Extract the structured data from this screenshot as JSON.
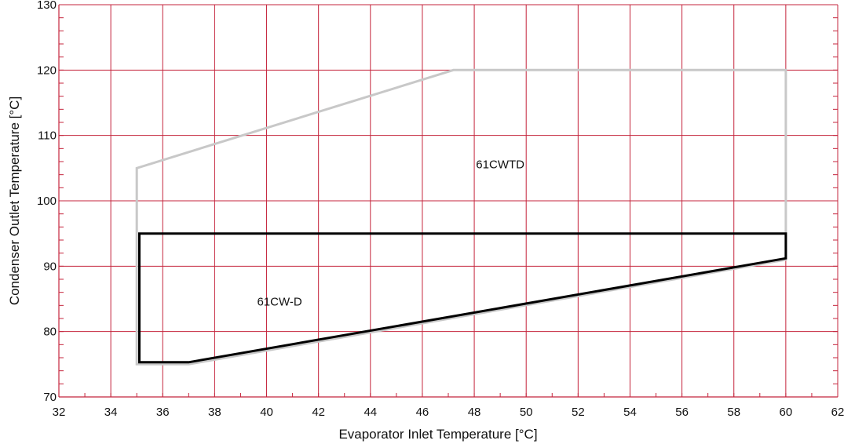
{
  "chart_data": {
    "type": "line",
    "title": "",
    "xlabel": "Evaporator Inlet Temperature [°C]",
    "ylabel": "Condenser Outlet Temperature [°C]",
    "xlim": [
      32,
      62
    ],
    "ylim": [
      70,
      130
    ],
    "x_ticks": [
      32,
      34,
      36,
      38,
      40,
      42,
      44,
      46,
      48,
      50,
      52,
      54,
      56,
      58,
      60,
      62
    ],
    "y_ticks": [
      70,
      80,
      90,
      100,
      110,
      120,
      130
    ],
    "x_minor_step": 1,
    "y_minor_step": 2,
    "grid": true,
    "colors": {
      "grid": "#c4243c",
      "series_61CWTD": "#c8c8c8",
      "series_61CW_D": "#000000"
    },
    "series": [
      {
        "name": "61CWTD",
        "closed": true,
        "points": [
          [
            35,
            75
          ],
          [
            37,
            75
          ],
          [
            60,
            91
          ],
          [
            60,
            120
          ],
          [
            47.2,
            120
          ],
          [
            35,
            105
          ]
        ],
        "label_at": [
          49,
          105
        ]
      },
      {
        "name": "61CW-D",
        "closed": true,
        "points": [
          [
            35.1,
            75.3
          ],
          [
            37,
            75.3
          ],
          [
            60,
            91.2
          ],
          [
            60,
            95
          ],
          [
            35.1,
            95
          ]
        ],
        "label_at": [
          40.5,
          84
        ]
      }
    ]
  }
}
